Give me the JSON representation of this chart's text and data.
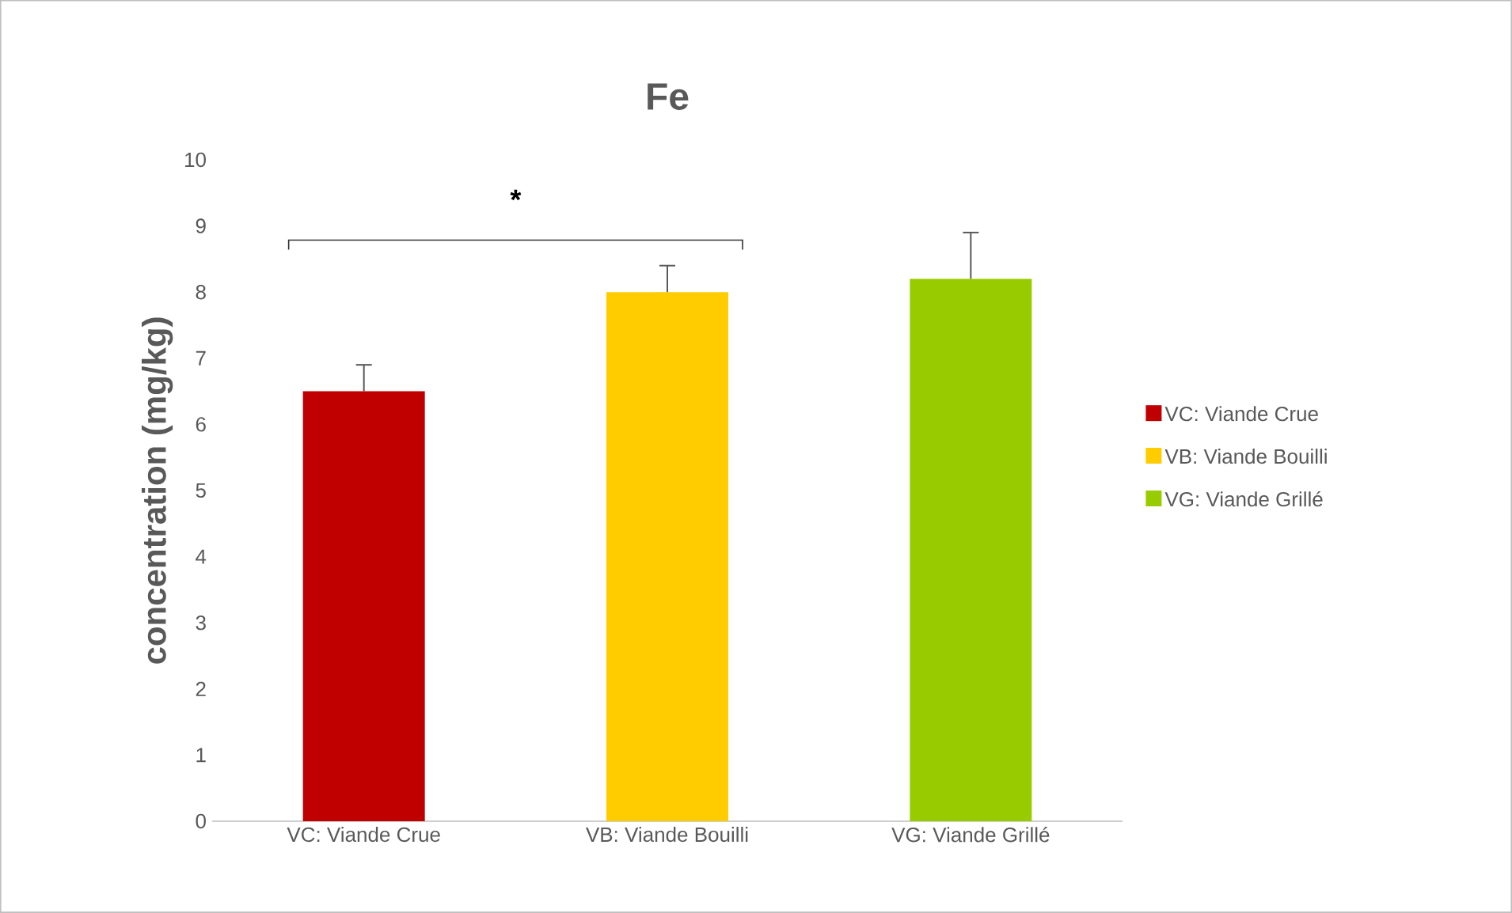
{
  "chart_data": {
    "type": "bar",
    "title": "Fe",
    "ylabel": "concentration (mg/kg)",
    "categories": [
      "VC: Viande Crue",
      "VB: Viande Bouilli",
      "VG: Viande Grillé"
    ],
    "series": [
      {
        "name": "VC: Viande Crue",
        "color": "#c00000",
        "values": [
          6.5,
          null,
          null
        ],
        "errors": [
          [
            6.5,
            6.9
          ],
          null,
          null
        ]
      },
      {
        "name": "VB: Viande Bouilli",
        "color": "#ffcc00",
        "values": [
          null,
          8.0,
          null
        ],
        "errors": [
          null,
          [
            8.0,
            8.4
          ],
          null
        ]
      },
      {
        "name": "VG: Viande Grillé",
        "color": "#99cc00",
        "values": [
          null,
          null,
          8.2
        ],
        "errors": [
          null,
          null,
          [
            8.2,
            8.9
          ]
        ]
      }
    ],
    "ylim": [
      0,
      10
    ],
    "yticks": [
      0,
      1,
      2,
      3,
      4,
      5,
      6,
      7,
      8,
      9,
      10
    ],
    "legend": "right",
    "annotations": [
      "*"
    ]
  }
}
